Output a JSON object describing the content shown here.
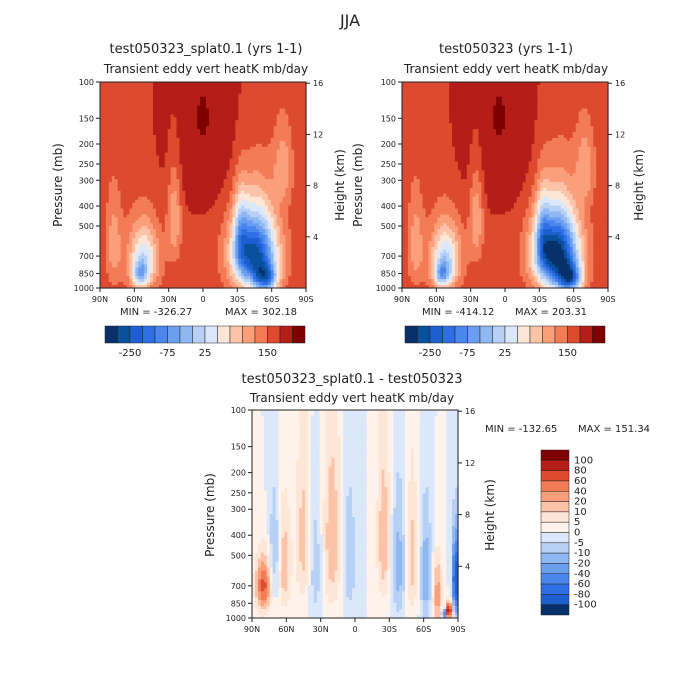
{
  "figure_title": "JJA",
  "chart_data": [
    {
      "type": "heatmap",
      "title": "test050323_splat0.1 (yrs 1-1)",
      "subtitle": "Transient eddy vert heatK mb/day",
      "xlabel": "",
      "ylabel": "Pressure (mb)",
      "y2label": "Height (km)",
      "x_ticks": [
        "90N",
        "60N",
        "30N",
        "0",
        "30S",
        "60S",
        "90S"
      ],
      "y_ticks": [
        "100",
        "150",
        "200",
        "250",
        "300",
        "400",
        "500",
        "700",
        "850",
        "1000"
      ],
      "y2_ticks": [
        "16",
        "12",
        "8",
        "4"
      ],
      "min_label": "MIN = -326.27",
      "max_label": "MAX = 302.18",
      "min": -326.27,
      "max": 302.18,
      "colorbar_labels": [
        "-250",
        "-75",
        "25",
        "150"
      ],
      "colors": [
        "#08306b",
        "#08519c",
        "#1c5fd0",
        "#2f6fe6",
        "#4a86ec",
        "#6a9ff0",
        "#8fb8f3",
        "#b7d0f5",
        "#dbe8fb",
        "#fde6d6",
        "#fcc3a8",
        "#fb9f7b",
        "#f37b56",
        "#dd4a2e",
        "#b51d18",
        "#7f0000"
      ],
      "fields": [
        {
          "sign": "pos",
          "lat": 0,
          "p": 150,
          "sx": 38,
          "sp": 250,
          "a": 0.35
        },
        {
          "sign": "neg",
          "lat": -45,
          "p": 680,
          "sx": 19,
          "sp": 300,
          "a": 3.1
        },
        {
          "sign": "neg",
          "lat": -55,
          "p": 900,
          "sx": 10,
          "sp": 140,
          "a": 1.7
        },
        {
          "sign": "neg",
          "lat": -33,
          "p": 550,
          "sx": 6,
          "sp": 230,
          "a": 0.9
        },
        {
          "sign": "neg",
          "lat": 52,
          "p": 720,
          "sx": 13,
          "sp": 260,
          "a": 1.4
        },
        {
          "sign": "neg",
          "lat": 55,
          "p": 860,
          "sx": 7,
          "sp": 120,
          "a": 1.1
        },
        {
          "sign": "neg",
          "lat": 25,
          "p": 450,
          "sx": 6,
          "sp": 240,
          "a": 0.7
        },
        {
          "sign": "neg",
          "lat": -70,
          "p": 260,
          "sx": 8,
          "sp": 110,
          "a": 0.6
        },
        {
          "sign": "neg",
          "lat": 78,
          "p": 620,
          "sx": 7,
          "sp": 300,
          "a": 0.6
        }
      ]
    },
    {
      "type": "heatmap",
      "title": "test050323 (yrs 1-1)",
      "subtitle": "Transient eddy vert heatK mb/day",
      "xlabel": "",
      "ylabel": "Pressure (mb)",
      "y2label": "Height (km)",
      "x_ticks": [
        "90N",
        "60N",
        "30N",
        "0",
        "30S",
        "60S",
        "90S"
      ],
      "y_ticks": [
        "100",
        "150",
        "200",
        "250",
        "300",
        "400",
        "500",
        "700",
        "850",
        "1000"
      ],
      "y2_ticks": [
        "16",
        "12",
        "8",
        "4"
      ],
      "min_label": "MIN = -414.12",
      "max_label": "MAX = 203.31",
      "min": -414.12,
      "max": 203.31,
      "colorbar_labels": [
        "-250",
        "-75",
        "25",
        "150"
      ],
      "colors": [
        "#08306b",
        "#08519c",
        "#1c5fd0",
        "#2f6fe6",
        "#4a86ec",
        "#6a9ff0",
        "#8fb8f3",
        "#b7d0f5",
        "#dbe8fb",
        "#fde6d6",
        "#fcc3a8",
        "#fb9f7b",
        "#f37b56",
        "#dd4a2e",
        "#b51d18",
        "#7f0000"
      ],
      "fields": [
        {
          "sign": "pos",
          "lat": 5,
          "p": 150,
          "sx": 38,
          "sp": 250,
          "a": 0.35
        },
        {
          "sign": "neg",
          "lat": -45,
          "p": 680,
          "sx": 19,
          "sp": 300,
          "a": 3.5
        },
        {
          "sign": "neg",
          "lat": -57,
          "p": 900,
          "sx": 10,
          "sp": 140,
          "a": 2.0
        },
        {
          "sign": "neg",
          "lat": -33,
          "p": 550,
          "sx": 6,
          "sp": 230,
          "a": 0.9
        },
        {
          "sign": "neg",
          "lat": 52,
          "p": 720,
          "sx": 13,
          "sp": 260,
          "a": 1.5
        },
        {
          "sign": "neg",
          "lat": 55,
          "p": 860,
          "sx": 7,
          "sp": 120,
          "a": 1.2
        },
        {
          "sign": "neg",
          "lat": 25,
          "p": 450,
          "sx": 6,
          "sp": 240,
          "a": 0.7
        },
        {
          "sign": "neg",
          "lat": -70,
          "p": 260,
          "sx": 8,
          "sp": 110,
          "a": 0.6
        },
        {
          "sign": "neg",
          "lat": 78,
          "p": 620,
          "sx": 7,
          "sp": 300,
          "a": 0.6
        }
      ]
    },
    {
      "type": "heatmap",
      "title": "test050323_splat0.1 - test050323",
      "subtitle": "Transient eddy vert heatK mb/day",
      "xlabel": "",
      "ylabel": "Pressure (mb)",
      "y2label": "Height (km)",
      "x_ticks": [
        "90N",
        "60N",
        "30N",
        "0",
        "30S",
        "60S",
        "90S"
      ],
      "y_ticks": [
        "100",
        "150",
        "200",
        "250",
        "300",
        "400",
        "500",
        "700",
        "850",
        "1000"
      ],
      "y2_ticks": [
        "16",
        "12",
        "8",
        "4"
      ],
      "min_label": "MIN = -132.65",
      "max_label": "MAX = 151.34",
      "min": -132.65,
      "max": 151.34,
      "colorbar_labels": [
        "100",
        "80",
        "60",
        "40",
        "20",
        "10",
        "5",
        "0",
        "-5",
        "-10",
        "-20",
        "-40",
        "-60",
        "-80",
        "-100"
      ],
      "colors": [
        "#7f0000",
        "#b51d18",
        "#dd4a2e",
        "#f37b56",
        "#fb9f7b",
        "#fcc3a8",
        "#fde6d6",
        "#fff2ea",
        "#dbe8fb",
        "#b7d0f5",
        "#8fb8f3",
        "#6a9ff0",
        "#4a86ec",
        "#2f6fe6",
        "#1c5fd0",
        "#08306b"
      ],
      "fields": [
        {
          "sign": "pos",
          "lat": 80,
          "p": 700,
          "sx": 7,
          "sp": 220,
          "a": 1.7
        },
        {
          "sign": "pos",
          "lat": 62,
          "p": 560,
          "sx": 6,
          "sp": 330,
          "a": 0.9
        },
        {
          "sign": "pos",
          "lat": 45,
          "p": 420,
          "sx": 7,
          "sp": 380,
          "a": 0.8
        },
        {
          "sign": "pos",
          "lat": 20,
          "p": 420,
          "sx": 8,
          "sp": 420,
          "a": 0.9
        },
        {
          "sign": "pos",
          "lat": -25,
          "p": 420,
          "sx": 6,
          "sp": 380,
          "a": 0.9
        },
        {
          "sign": "pos",
          "lat": -50,
          "p": 520,
          "sx": 5,
          "sp": 380,
          "a": 0.8
        },
        {
          "sign": "pos",
          "lat": -72,
          "p": 780,
          "sx": 4,
          "sp": 300,
          "a": 1.2
        },
        {
          "sign": "pos",
          "lat": -82,
          "p": 920,
          "sx": 3,
          "sp": 90,
          "a": 2.4
        },
        {
          "sign": "neg",
          "lat": 70,
          "p": 500,
          "sx": 5,
          "sp": 300,
          "a": 0.8
        },
        {
          "sign": "neg",
          "lat": 35,
          "p": 560,
          "sx": 6,
          "sp": 380,
          "a": 0.6
        },
        {
          "sign": "neg",
          "lat": 5,
          "p": 520,
          "sx": 6,
          "sp": 380,
          "a": 0.6
        },
        {
          "sign": "neg",
          "lat": -38,
          "p": 560,
          "sx": 6,
          "sp": 380,
          "a": 0.8
        },
        {
          "sign": "neg",
          "lat": -62,
          "p": 620,
          "sx": 5,
          "sp": 380,
          "a": 0.9
        },
        {
          "sign": "neg",
          "lat": -88,
          "p": 650,
          "sx": 3,
          "sp": 300,
          "a": 2.3
        },
        {
          "sign": "neg",
          "lat": -78,
          "p": 950,
          "sx": 2,
          "sp": 60,
          "a": 2.2
        }
      ]
    }
  ]
}
